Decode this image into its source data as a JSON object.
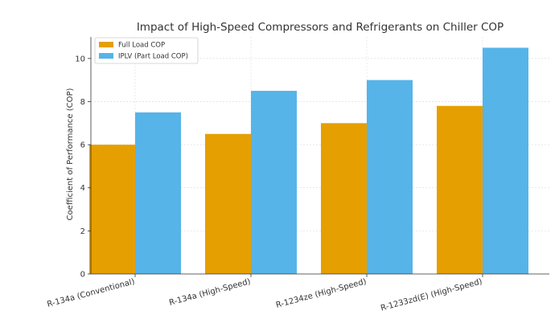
{
  "chart_data": {
    "type": "bar",
    "title": "Impact of High-Speed Compressors and Refrigerants on Chiller COP",
    "xlabel": "",
    "ylabel": "Coefficient of Performance (COP)",
    "categories": [
      "R-134a (Conventional)",
      "R-134a (High-Speed)",
      "R-1234ze (High-Speed)",
      "R-1233zd(E) (High-Speed)"
    ],
    "series": [
      {
        "name": "Full Load COP",
        "values": [
          6.0,
          6.5,
          7.0,
          7.8
        ],
        "color": "#E69F00"
      },
      {
        "name": "IPLV (Part Load COP)",
        "values": [
          7.5,
          8.5,
          9.0,
          10.5
        ],
        "color": "#56B4E9"
      }
    ],
    "ylim": [
      0,
      11
    ],
    "yticks": [
      0,
      2,
      4,
      6,
      8,
      10
    ],
    "grid": true,
    "legend_position": "top-left"
  }
}
